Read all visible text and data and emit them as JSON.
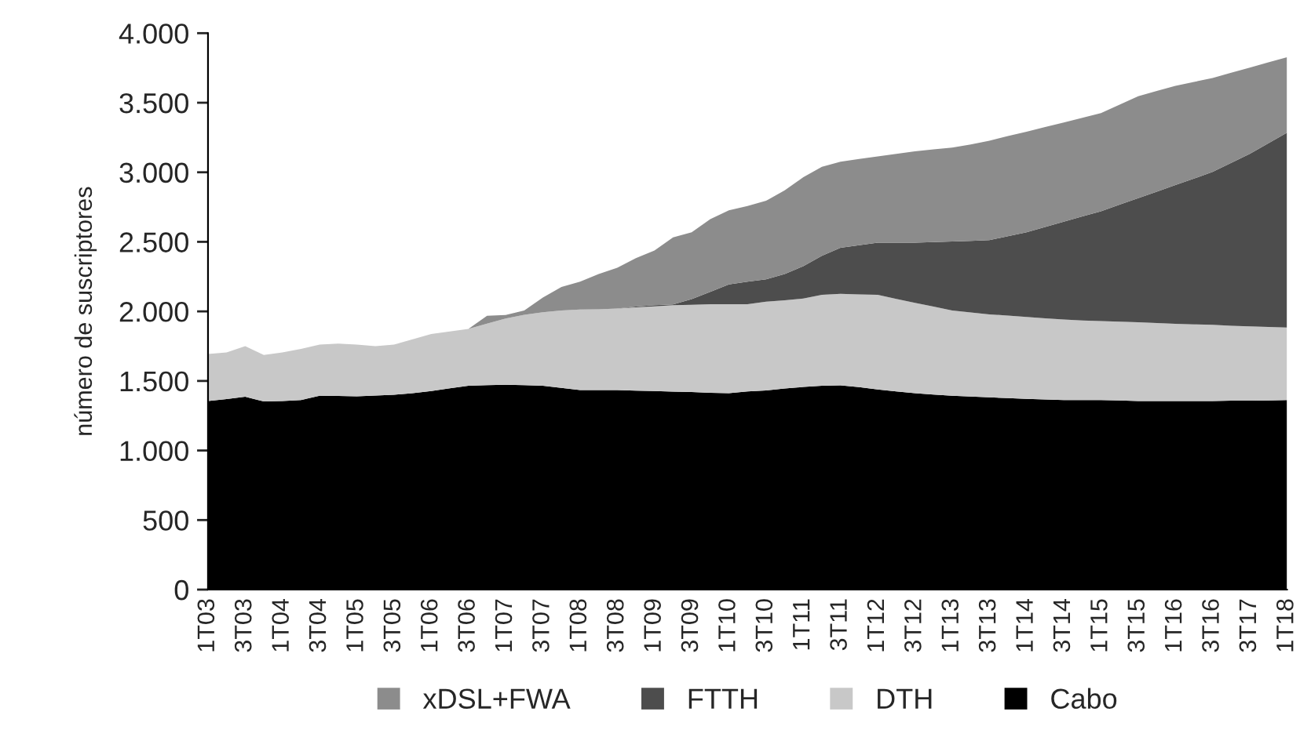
{
  "chart_data": {
    "type": "area",
    "stacked": true,
    "ylabel": "número de suscriptores",
    "categories": [
      "1T03",
      null,
      "3T03",
      null,
      "1T04",
      null,
      "3T04",
      null,
      "1T05",
      null,
      "3T05",
      null,
      "1T06",
      null,
      "3T06",
      null,
      "1T07",
      null,
      "3T07",
      null,
      "1T08",
      null,
      "3T08",
      null,
      "1T09",
      null,
      "3T09",
      null,
      "1T10",
      null,
      "3T10",
      null,
      "1T11",
      null,
      "3T11",
      null,
      "1T12",
      null,
      "3T12",
      null,
      "1T13",
      null,
      "3T13",
      null,
      "1T14",
      null,
      "3T14",
      null,
      "1T15",
      null,
      "3T15",
      null,
      "1T16",
      null,
      "3T16",
      null,
      "3T17",
      null,
      "1T18"
    ],
    "series": [
      {
        "name": "Cabo",
        "color": "#000000",
        "values": [
          1356,
          1370,
          1386,
          1352,
          1355,
          1363,
          1393,
          1392,
          1390,
          1395,
          1401,
          1412,
          1427,
          1447,
          1465,
          1470,
          1472,
          1470,
          1465,
          1450,
          1435,
          1435,
          1435,
          1430,
          1427,
          1423,
          1420,
          1415,
          1412,
          1424,
          1431,
          1445,
          1457,
          1466,
          1468,
          1455,
          1439,
          1425,
          1412,
          1402,
          1393,
          1388,
          1382,
          1376,
          1371,
          1367,
          1363,
          1363,
          1363,
          1360,
          1356,
          1356,
          1356,
          1356,
          1356,
          1358,
          1358,
          1360,
          1363
        ]
      },
      {
        "name": "DTH",
        "color": "#c8c8c8",
        "values": [
          338,
          335,
          364,
          334,
          350,
          368,
          368,
          377,
          371,
          355,
          360,
          387,
          410,
          409,
          409,
          442,
          477,
          505,
          529,
          556,
          579,
          580,
          585,
          599,
          609,
          621,
          628,
          636,
          639,
          627,
          639,
          635,
          635,
          653,
          658,
          667,
          680,
          665,
          650,
          632,
          613,
          604,
          597,
          594,
          589,
          583,
          578,
          572,
          567,
          566,
          566,
          560,
          555,
          551,
          547,
          539,
          534,
          528,
          521
        ]
      },
      {
        "name": "FTTH",
        "color": "#4d4d4d",
        "values": [
          0,
          0,
          0,
          0,
          0,
          0,
          0,
          0,
          0,
          0,
          0,
          0,
          0,
          0,
          0,
          0,
          0,
          0,
          0,
          0,
          0,
          0,
          0,
          5,
          8,
          6,
          40,
          90,
          143,
          162,
          161,
          189,
          233,
          281,
          331,
          353,
          375,
          404,
          432,
          464,
          496,
          515,
          534,
          570,
          609,
          657,
          704,
          748,
          790,
          841,
          892,
          945,
          997,
          1048,
          1099,
          1171,
          1241,
          1320,
          1400
        ]
      },
      {
        "name": "xDSL+FWA",
        "color": "#8c8c8c",
        "values": [
          0,
          0,
          0,
          0,
          0,
          0,
          0,
          0,
          0,
          0,
          0,
          0,
          0,
          0,
          0,
          56,
          25,
          31,
          106,
          169,
          199,
          254,
          294,
          348,
          394,
          482,
          481,
          522,
          533,
          544,
          564,
          601,
          639,
          639,
          619,
          620,
          620,
          638,
          657,
          667,
          676,
          693,
          714,
          720,
          722,
          718,
          713,
          709,
          706,
          719,
          732,
          724,
          713,
          695,
          675,
          647,
          619,
          582,
          543
        ]
      }
    ],
    "ylim": [
      0,
      4000
    ],
    "yticks": [
      0,
      500,
      {
        "value": 1000,
        "label": "1.000"
      },
      {
        "value": 1500,
        "label": "1.500"
      },
      {
        "value": 2000,
        "label": "2.000"
      },
      {
        "value": 2500,
        "label": "2.500"
      },
      {
        "value": 3000,
        "label": "3.000"
      },
      {
        "value": 3500,
        "label": "3.500"
      },
      {
        "value": 4000,
        "label": "4.000"
      }
    ],
    "legend": "bottom",
    "grid": false
  }
}
